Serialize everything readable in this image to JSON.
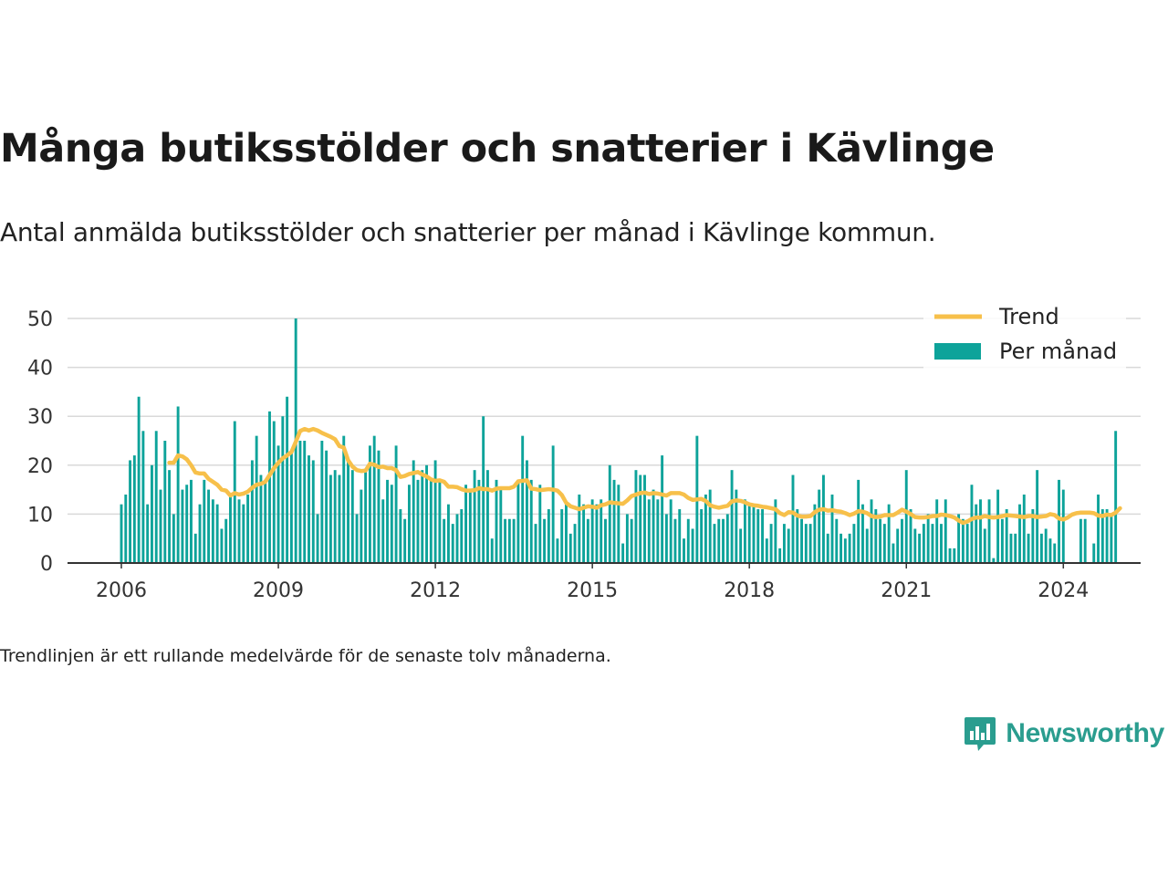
{
  "title": "Många butiksstölder och snatterier i Kävlinge",
  "subtitle": "Antal anmälda butiksstölder och snatterier per månad i Kävlinge kommun.",
  "footnote": "Trendlinjen är ett rullande medelvärde för de senaste tolv månaderna.",
  "brand": {
    "name": "Newsworthy",
    "color": "#2a9d8f",
    "icon": "newsworthy-logo-icon"
  },
  "colors": {
    "bars": "#0da39a",
    "trend": "#f7c04a",
    "grid": "#d9d9d9",
    "axis": "#333333"
  },
  "chart_data": {
    "type": "bar",
    "start": "2006-01",
    "frequency": "monthly",
    "ylim": [
      0,
      50
    ],
    "yticks": [
      0,
      10,
      20,
      30,
      40,
      50
    ],
    "xticks": [
      "2006",
      "2009",
      "2012",
      "2015",
      "2018",
      "2021",
      "2024"
    ],
    "grid": true,
    "legend_position": "top-right",
    "series": [
      {
        "name": "Per månad",
        "kind": "bar",
        "color": "#0da39a",
        "values": [
          12,
          14,
          21,
          22,
          34,
          27,
          12,
          20,
          27,
          15,
          25,
          19,
          10,
          32,
          15,
          16,
          17,
          6,
          12,
          17,
          15,
          13,
          12,
          7,
          9,
          14,
          29,
          13,
          12,
          14,
          21,
          26,
          18,
          17,
          31,
          29,
          24,
          30,
          34,
          23,
          50,
          25,
          25,
          22,
          21,
          10,
          25,
          23,
          18,
          19,
          18,
          26,
          21,
          19,
          10,
          15,
          19,
          24,
          26,
          23,
          13,
          17,
          16,
          24,
          11,
          9,
          16,
          21,
          17,
          19,
          20,
          17,
          21,
          17,
          9,
          12,
          8,
          10,
          11,
          16,
          15,
          19,
          17,
          30,
          19,
          5,
          17,
          15,
          9,
          9,
          9,
          17,
          26,
          21,
          17,
          8,
          16,
          9,
          11,
          24,
          5,
          11,
          12,
          6,
          8,
          14,
          12,
          9,
          13,
          12,
          13,
          9,
          20,
          17,
          16,
          4,
          10,
          9,
          19,
          18,
          18,
          13,
          15,
          13,
          22,
          10,
          13,
          9,
          11,
          5,
          9,
          7,
          26,
          11,
          14,
          15,
          8,
          9,
          9,
          10,
          19,
          15,
          7,
          13,
          12,
          12,
          11,
          11,
          5,
          8,
          13,
          3,
          8,
          7,
          18,
          11,
          9,
          8,
          8,
          12,
          15,
          18,
          6,
          14,
          9,
          6,
          5,
          6,
          8,
          17,
          12,
          7,
          13,
          11,
          9,
          8,
          12,
          4,
          7,
          9,
          19,
          11,
          7,
          6,
          8,
          10,
          8,
          13,
          8,
          13,
          3,
          3,
          10,
          9,
          8,
          16,
          12,
          13,
          7,
          13,
          1,
          15,
          9,
          11,
          6,
          6,
          12,
          14,
          6,
          11,
          19,
          6,
          7,
          5,
          4,
          17,
          15,
          0,
          0,
          0,
          9,
          9,
          0,
          4,
          14,
          11,
          11,
          10,
          27
        ]
      },
      {
        "name": "Trend",
        "kind": "line",
        "color": "#f7c04a",
        "values": [
          20.5,
          20.5,
          22,
          21.8,
          21.2,
          20,
          18.5,
          18.3,
          18.3,
          17.2,
          16.6,
          16,
          15,
          14.8,
          13.8,
          14.3,
          14,
          14.2,
          14.6,
          15.4,
          16,
          16.2,
          16.6,
          18,
          19.4,
          20.5,
          21.4,
          22,
          22.7,
          24.8,
          27,
          27.4,
          27.1,
          27.4,
          27.1,
          26.6,
          26.2,
          25.8,
          25.3,
          23.9,
          23.6,
          21,
          19.7,
          19,
          18.8,
          18.9,
          20.3,
          20.1,
          19.6,
          19.7,
          19.4,
          19.4,
          19,
          17.6,
          17.8,
          18.2,
          18.4,
          18.6,
          18.1,
          17.7,
          17.1,
          16.8,
          16.9,
          16.6,
          15.6,
          15.6,
          15.5,
          15.1,
          14.8,
          14.8,
          14.9,
          15.3,
          15.1,
          15.1,
          14.8,
          15.2,
          15.3,
          15.3,
          15.3,
          15.6,
          16.7,
          16.8,
          16.9,
          15.2,
          15.1,
          14.9,
          15,
          15.1,
          15,
          14.8,
          13.9,
          12.3,
          11.6,
          11.3,
          11,
          11.3,
          11.6,
          11.5,
          11.3,
          11.8,
          12,
          12.4,
          12.3,
          12.2,
          12.1,
          12.8,
          13.7,
          14,
          14.3,
          14.4,
          14.1,
          14.3,
          14.2,
          14,
          13.8,
          14.3,
          14.3,
          14.3,
          14,
          13.3,
          12.9,
          13,
          13.1,
          12.7,
          11.8,
          11.5,
          11.3,
          11.5,
          11.7,
          12.6,
          12.8,
          12.7,
          12.4,
          12,
          11.8,
          11.7,
          11.5,
          11.4,
          11.2,
          11,
          10.2,
          9.8,
          10.4,
          10.3,
          9.7,
          9.5,
          9.5,
          9.6,
          10.4,
          10.9,
          11,
          10.7,
          10.8,
          10.6,
          10.5,
          10.2,
          9.8,
          10.1,
          10.6,
          10.5,
          10.2,
          9.6,
          9.4,
          9.5,
          9.8,
          9.8,
          9.8,
          10.3,
          10.9,
          10.5,
          10,
          9.4,
          9.3,
          9.3,
          9.4,
          9.6,
          9.6,
          9.9,
          9.8,
          9.6,
          9.3,
          8.7,
          8.2,
          8.5,
          9,
          9.3,
          9.3,
          9.6,
          9.4,
          9.3,
          9.4,
          9.6,
          9.8,
          9.7,
          9.6,
          9.5,
          9.4,
          9.6,
          9.6,
          9.4,
          9.5,
          9.6,
          10,
          9.8,
          9.1,
          8.9,
          9.3,
          9.9,
          10.2,
          10.3,
          10.3,
          10.3,
          10.2,
          9.7,
          9.6,
          9.9,
          9.8,
          10.3,
          11.2
        ]
      }
    ]
  }
}
